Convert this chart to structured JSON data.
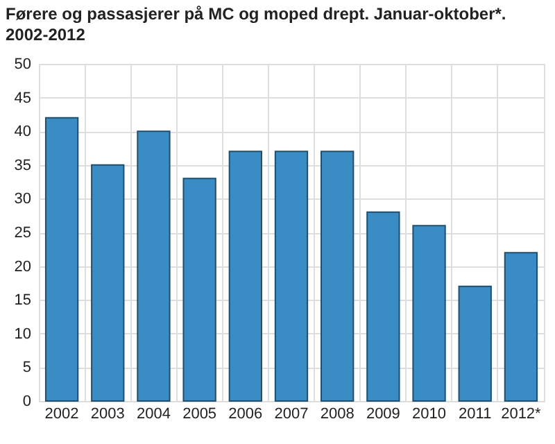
{
  "chart_data": {
    "type": "bar",
    "title": "Førere og passasjerer på MC og moped drept. Januar-oktober*. 2002-2012",
    "categories": [
      "2002",
      "2003",
      "2004",
      "2005",
      "2006",
      "2007",
      "2008",
      "2009",
      "2010",
      "2011",
      "2012*"
    ],
    "values": [
      42,
      35,
      40,
      33,
      37,
      37,
      37,
      28,
      26,
      17,
      22
    ],
    "color": "#3a8dc4",
    "ylim": [
      0,
      50
    ],
    "yticks": [
      0,
      5,
      10,
      15,
      20,
      25,
      30,
      35,
      40,
      45,
      50
    ],
    "grid": true
  }
}
